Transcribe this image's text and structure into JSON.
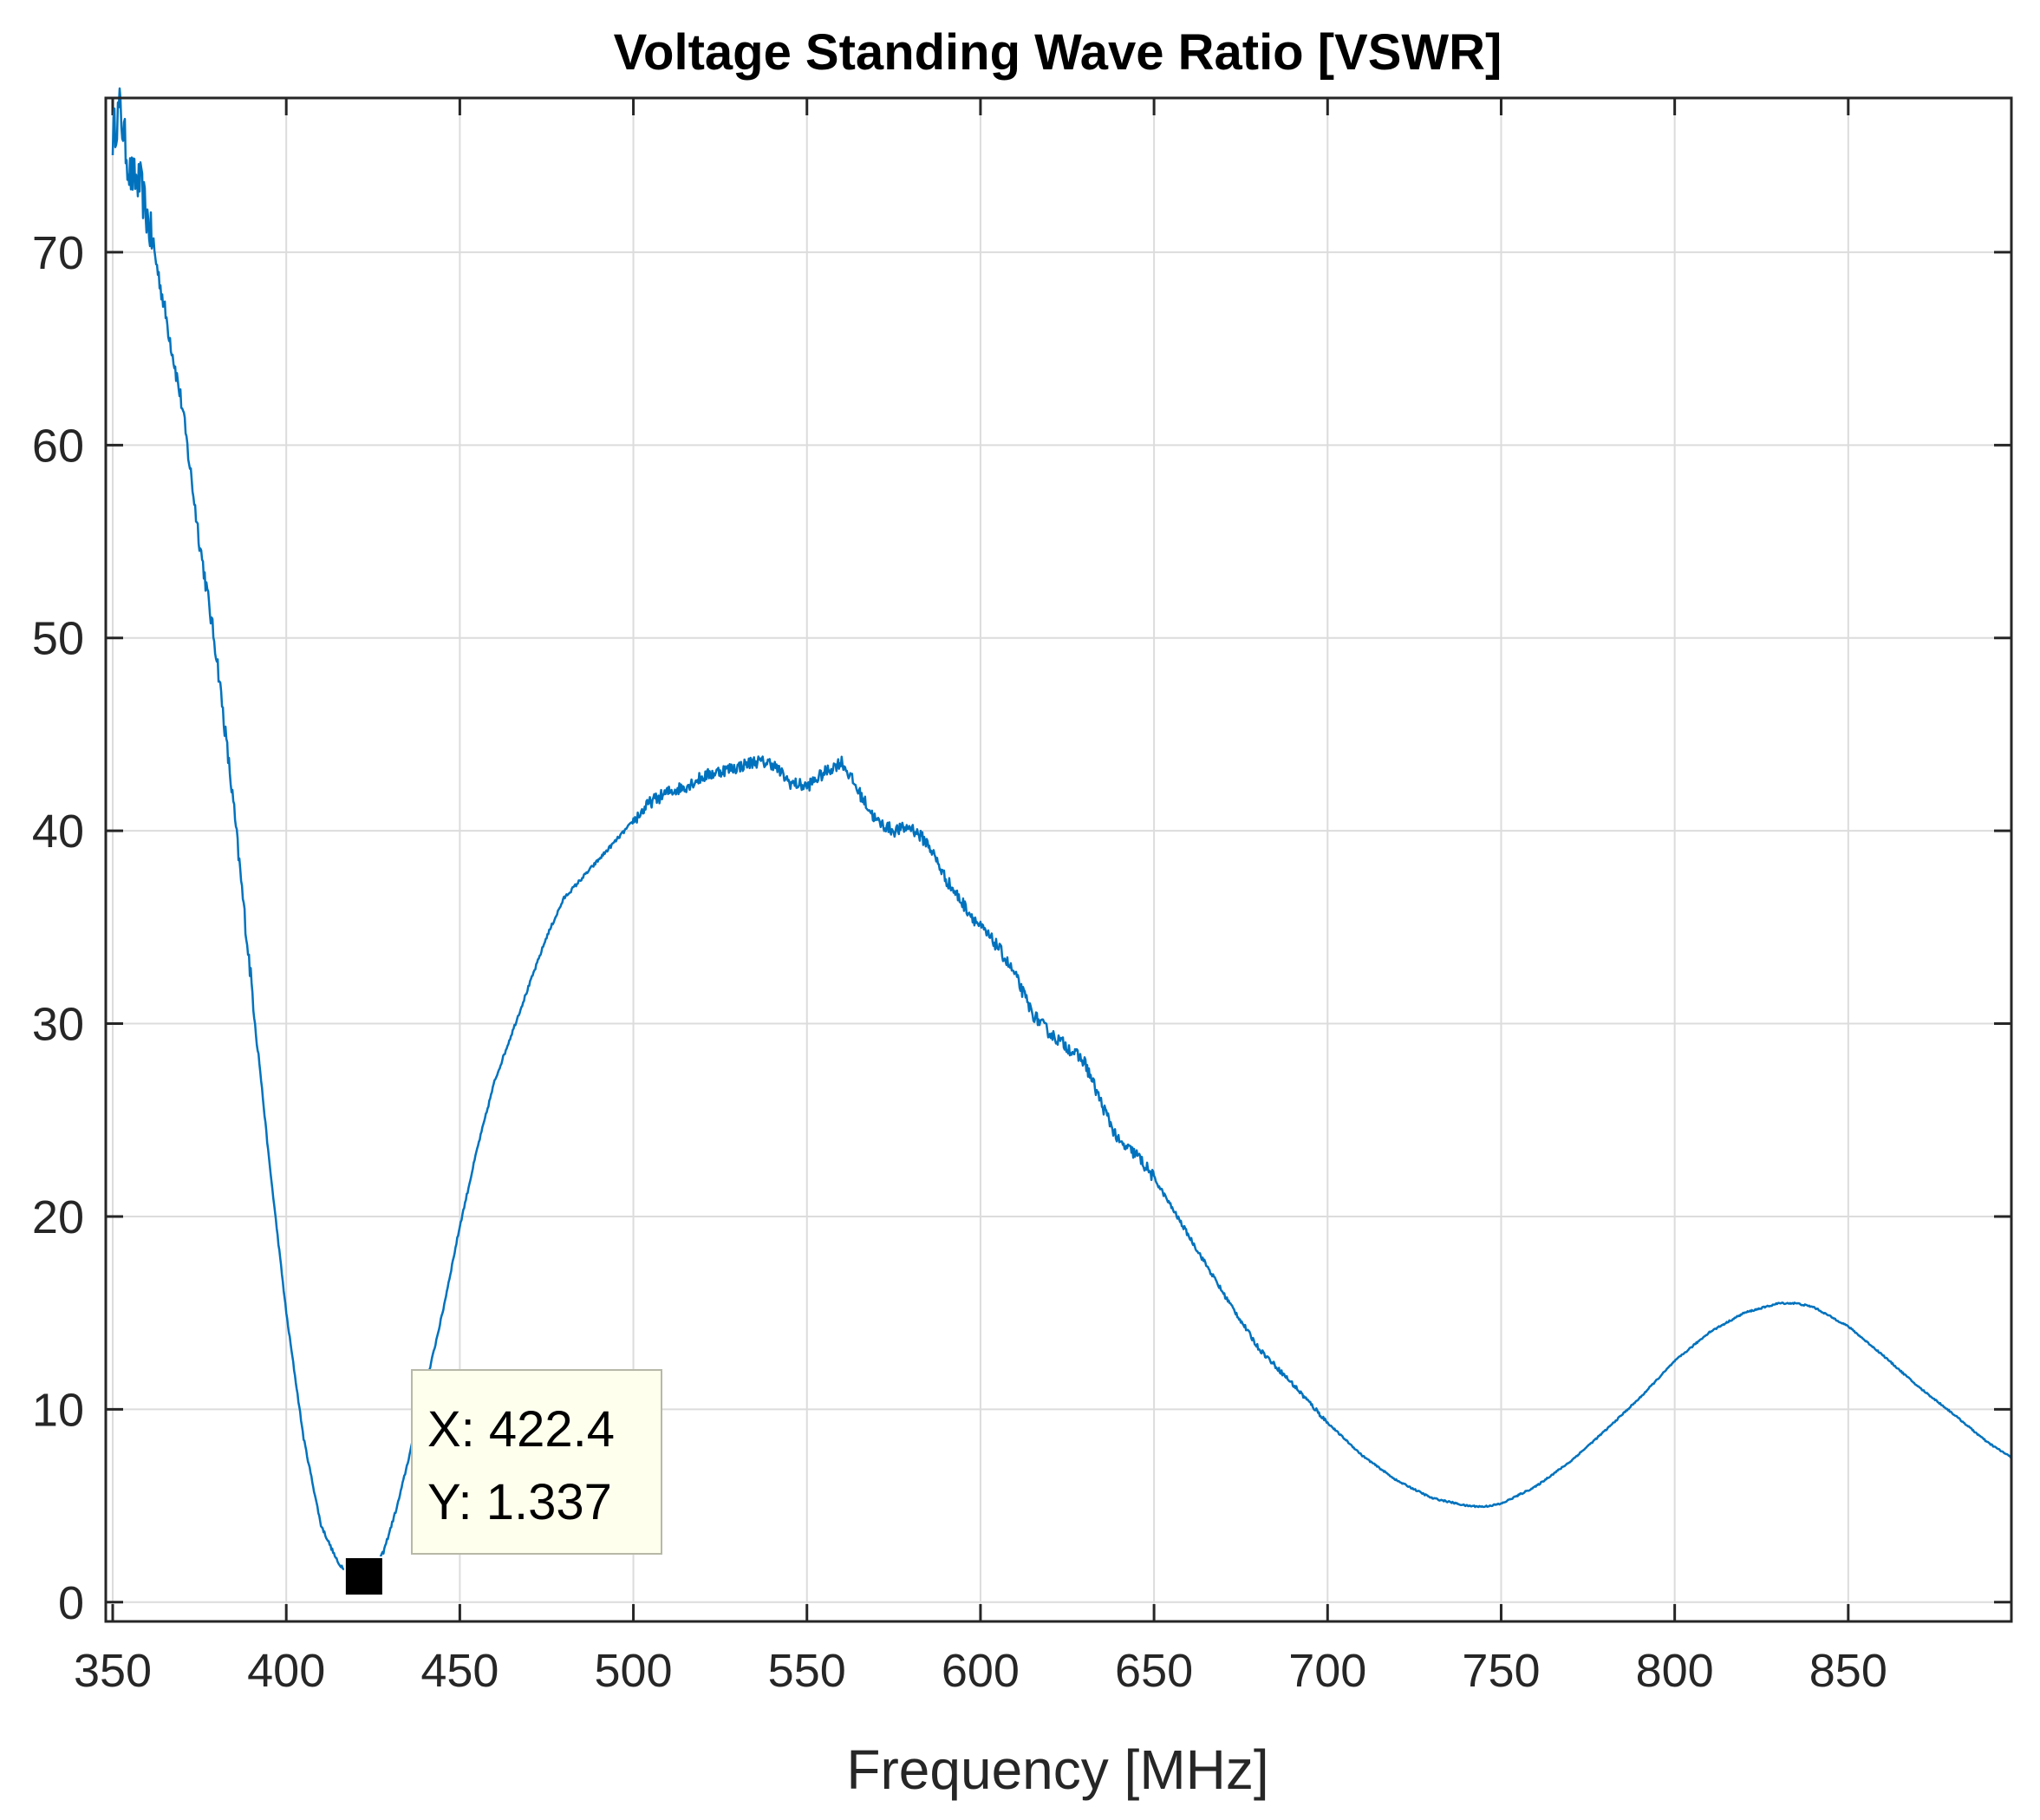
{
  "chart_data": {
    "type": "line",
    "title": "Voltage Standing Wave Ratio [VSWR]",
    "xlabel": "Frequency [MHz]",
    "ylabel": "",
    "xlim": [
      348,
      897
    ],
    "ylim": [
      -1,
      78
    ],
    "xticks": [
      350,
      400,
      450,
      500,
      550,
      600,
      650,
      700,
      750,
      800,
      850
    ],
    "yticks": [
      0,
      10,
      20,
      30,
      40,
      50,
      60,
      70
    ],
    "grid": true,
    "series": [
      {
        "name": "VSWR",
        "color": "#0072BD",
        "x": [
          350,
          352,
          355,
          358,
          362,
          366,
          370,
          375,
          380,
          385,
          390,
          395,
          400,
          405,
          410,
          415,
          418,
          420,
          422.4,
          425,
          428,
          432,
          436,
          440,
          445,
          450,
          455,
          460,
          465,
          470,
          475,
          480,
          485,
          490,
          495,
          500,
          505,
          510,
          515,
          520,
          525,
          530,
          535,
          540,
          545,
          550,
          555,
          560,
          565,
          570,
          575,
          580,
          585,
          590,
          595,
          600,
          605,
          610,
          615,
          620,
          625,
          630,
          635,
          640,
          645,
          650,
          660,
          670,
          680,
          690,
          700,
          710,
          720,
          730,
          740,
          745,
          750,
          760,
          770,
          780,
          790,
          800,
          810,
          820,
          830,
          835,
          840,
          850,
          860,
          870,
          880,
          890,
          897
        ],
        "y": [
          76,
          77.5,
          74,
          73.5,
          70,
          66,
          62,
          55,
          49,
          41,
          32,
          23,
          15,
          8.5,
          4,
          2,
          1.6,
          1.45,
          1.337,
          1.6,
          2.6,
          5,
          8,
          11,
          15,
          19.5,
          23.5,
          27,
          29.5,
          32,
          34.5,
          36.5,
          37.5,
          38.5,
          39.5,
          40.5,
          41.5,
          42,
          42.3,
          42.8,
          43.1,
          43.3,
          43.6,
          43.5,
          42.5,
          42.3,
          43,
          43.6,
          42,
          40.5,
          40,
          40.2,
          39.3,
          37.5,
          36.2,
          35,
          34,
          32.5,
          30.5,
          29.5,
          28.8,
          28,
          25.8,
          23.8,
          23.2,
          22,
          19,
          16,
          13.2,
          11.3,
          9.3,
          7.6,
          6.3,
          5.4,
          5.0,
          4.95,
          5.1,
          6.0,
          7.3,
          8.9,
          10.6,
          12.5,
          14.0,
          15.0,
          15.5,
          15.5,
          15.3,
          14.3,
          12.8,
          11.2,
          9.8,
          8.3,
          7.5
        ]
      }
    ],
    "datatip": {
      "x_label": "X: 422.4",
      "y_label": "Y: 1.337",
      "x": 422.4,
      "y": 1.337
    }
  }
}
